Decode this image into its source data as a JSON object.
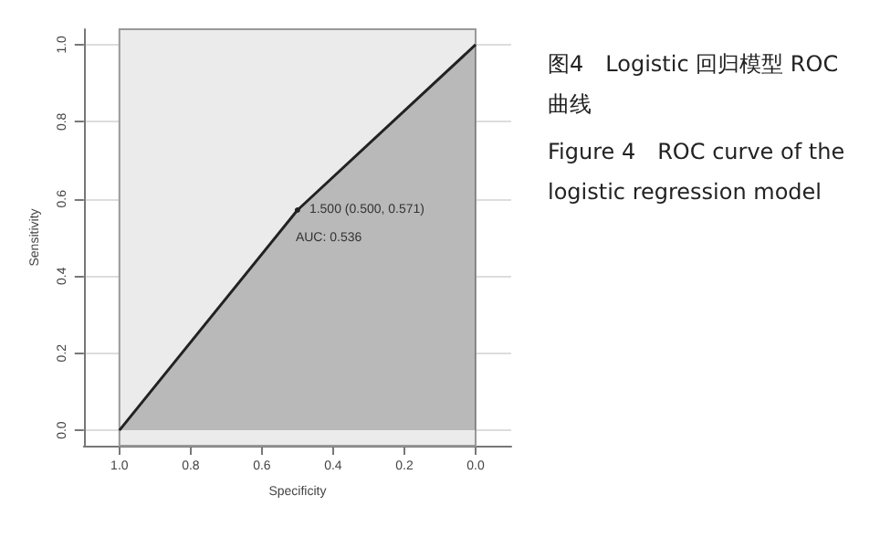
{
  "chart_data": {
    "type": "area",
    "xlabel": "Specificity",
    "ylabel": "Sensitivity",
    "x": [
      1,
      0.5,
      0
    ],
    "series": [
      {
        "color": "#222222",
        "values": [
          0,
          0.571,
          1
        ]
      }
    ],
    "xlim": [
      1.1,
      -0.1
    ],
    "xticks": [
      {
        "value": 1,
        "label": "1.0"
      },
      0.8,
      0.6,
      0.4,
      0.2,
      {
        "value": 0,
        "label": "0.0"
      }
    ],
    "ylim": [
      -0.04,
      1.04
    ],
    "yticks": [
      {
        "value": 0,
        "label": "0.0"
      },
      0.2,
      0.4,
      0.6,
      0.8,
      {
        "value": 1,
        "label": "1.0"
      }
    ],
    "grid": "y",
    "bands": [
      {
        "axis": "x",
        "from": 1,
        "to": 0,
        "color": "#ebebeb"
      }
    ],
    "annotations": [
      {
        "text": "1.500 (0.500, 0.571)",
        "x": 0.5,
        "y": 0.571
      },
      "AUC: 0.536",
      "图4　Logistic 回归模型 ROC 曲线",
      "Figure 4　ROC curve of the logistic regression model"
    ]
  }
}
